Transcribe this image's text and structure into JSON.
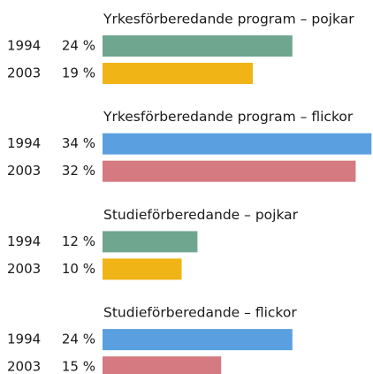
{
  "chart_data": [
    {
      "type": "bar",
      "title": "Yrkesförberedande program – pojkar",
      "categories": [
        "1994",
        "2003"
      ],
      "values": [
        24,
        19
      ],
      "value_labels": [
        "24 %",
        "19 %"
      ],
      "colors": [
        "#6fa690",
        "#f0b416"
      ]
    },
    {
      "type": "bar",
      "title": "Yrkesförberedande program – flickor",
      "categories": [
        "1994",
        "2003"
      ],
      "values": [
        34,
        32
      ],
      "value_labels": [
        "34 %",
        "32 %"
      ],
      "colors": [
        "#5aa0e0",
        "#d47a80"
      ]
    },
    {
      "type": "bar",
      "title": "Studieförberedande – pojkar",
      "categories": [
        "1994",
        "2003"
      ],
      "values": [
        12,
        10
      ],
      "value_labels": [
        "12 %",
        "10 %"
      ],
      "colors": [
        "#6fa690",
        "#f0b416"
      ]
    },
    {
      "type": "bar",
      "title": "Studieförberedande – flickor",
      "categories": [
        "1994",
        "2003"
      ],
      "values": [
        24,
        15
      ],
      "value_labels": [
        "24 %",
        "15 %"
      ],
      "colors": [
        "#5aa0e0",
        "#d47a80"
      ]
    }
  ]
}
